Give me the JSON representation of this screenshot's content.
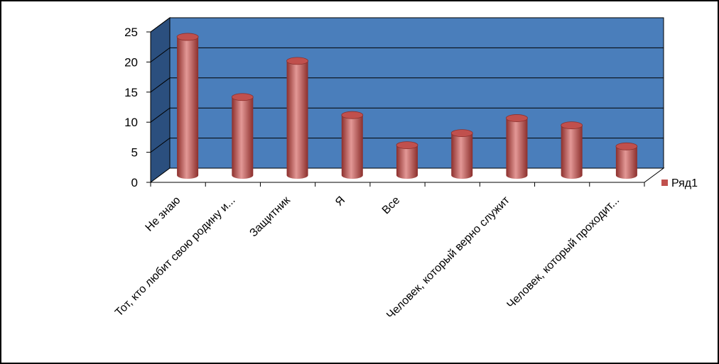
{
  "chart_data": {
    "type": "bar",
    "style": "3d-cylinder",
    "categories": [
      "Не знаю",
      "Тот, кто любит свою родину и...",
      "Защитник",
      "Я",
      "Все",
      "",
      "Человек, который верно служит",
      "",
      "Человек, который проходит..."
    ],
    "series": [
      {
        "name": "Ряд1",
        "values": [
          23,
          13,
          19,
          10,
          5,
          7,
          9.5,
          8.3,
          4.8
        ]
      }
    ],
    "ylim": [
      0,
      25
    ],
    "yticks": [
      0,
      5,
      10,
      15,
      20,
      25
    ],
    "grid": true,
    "legend": "right",
    "colors": {
      "back_wall": "#4a7ebb",
      "side_wall": "#2b4f7e",
      "floor": "#ffffff",
      "bar": "#c0504d",
      "bar_dark": "#8c2f2c",
      "bar_light": "#e39896"
    }
  }
}
